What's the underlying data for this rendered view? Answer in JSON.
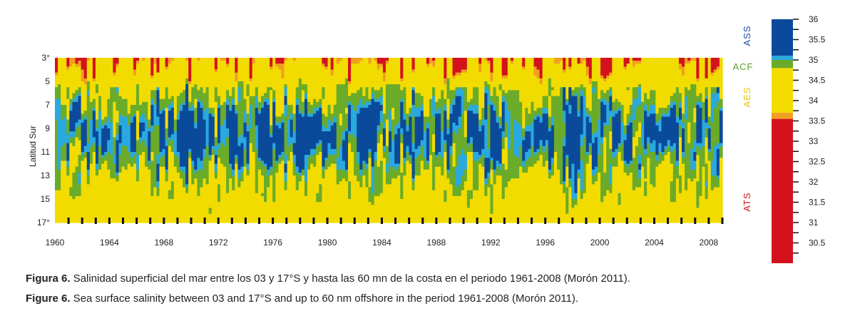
{
  "chart_data": {
    "type": "heatmap",
    "title": "",
    "xlabel": "",
    "ylabel": "Latitud Sur",
    "x_range": [
      1960,
      2009
    ],
    "y_range": [
      3,
      17
    ],
    "x_ticks": [
      "1960",
      "1964",
      "1968",
      "1972",
      "1976",
      "1980",
      "1984",
      "1988",
      "1992",
      "1996",
      "2000",
      "2004",
      "2008"
    ],
    "y_ticks": [
      "3°",
      "5",
      "7",
      "9",
      "11",
      "13",
      "15",
      "17°"
    ],
    "colorbar": {
      "ticks": [
        "36",
        "35.5",
        "35",
        "34.5",
        "34",
        "33.5",
        "33",
        "32.5",
        "32",
        "31.5",
        "31",
        "30.5"
      ],
      "range": [
        30,
        36
      ],
      "bands": [
        {
          "from": 35.1,
          "to": 36.0,
          "color": "#0b4a9a"
        },
        {
          "from": 35.0,
          "to": 35.1,
          "color": "#2aa9df"
        },
        {
          "from": 34.8,
          "to": 35.0,
          "color": "#6aab2a"
        },
        {
          "from": 33.7,
          "to": 34.8,
          "color": "#f2dc00"
        },
        {
          "from": 33.55,
          "to": 33.7,
          "color": "#f0a020"
        },
        {
          "from": 30.0,
          "to": 33.55,
          "color": "#d3121e"
        }
      ],
      "water_masses": [
        {
          "label": "ASS",
          "color": "#1e50a0"
        },
        {
          "label": "ACF",
          "color": "#5a9e2a"
        },
        {
          "label": "AES",
          "color": "#e8c800"
        },
        {
          "label": "ATS",
          "color": "#d3121e"
        }
      ]
    },
    "deep_blue_events": [
      1969.5,
      1970.5,
      1973,
      1975.5,
      1978,
      1982.5,
      1983.3,
      1992.2,
      1997.8,
      1998.3
    ]
  },
  "captions": {
    "es_label": "Figura 6.",
    "es_text": " Salinidad superficial del mar entre los 03 y 17°S  y hasta las 60 mn de la costa en el periodo 1961-2008 (Morón 2011).",
    "en_label": "Figure 6.",
    "en_text": " Sea surface salinity between 03 and 17°S and up to 60 nm offshore in the period 1961-2008 (Morón 2011)."
  }
}
